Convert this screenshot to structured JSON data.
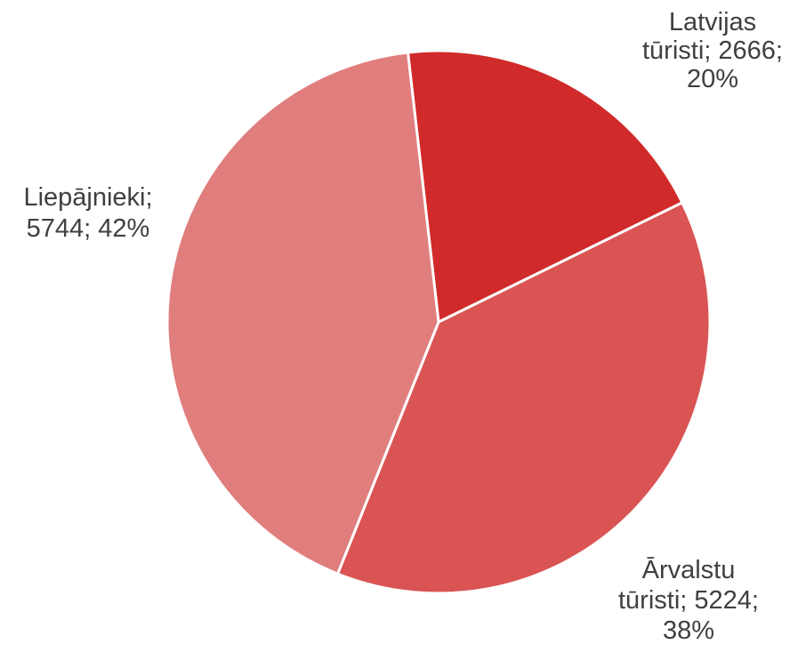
{
  "chart_data": {
    "type": "pie",
    "slices": [
      {
        "category": "Latvijas tūristi",
        "value": 2666,
        "percent": "20%",
        "color": "#d12a2a",
        "label_lines": [
          "Latvijas",
          "tūristi; 2666;",
          "20%"
        ]
      },
      {
        "category": "Ārvalstu tūristi",
        "value": 5224,
        "percent": "38%",
        "color": "#da5454",
        "label_lines": [
          "Ārvalstu",
          "tūristi; 5224;",
          "38%"
        ]
      },
      {
        "category": "Liepājnieki",
        "value": 5744,
        "percent": "42%",
        "color": "#e07e7e",
        "label_lines": [
          "Liepājnieki;",
          "5744; 42%"
        ]
      }
    ],
    "legend": "none",
    "data_labels": "category; value; percent"
  }
}
